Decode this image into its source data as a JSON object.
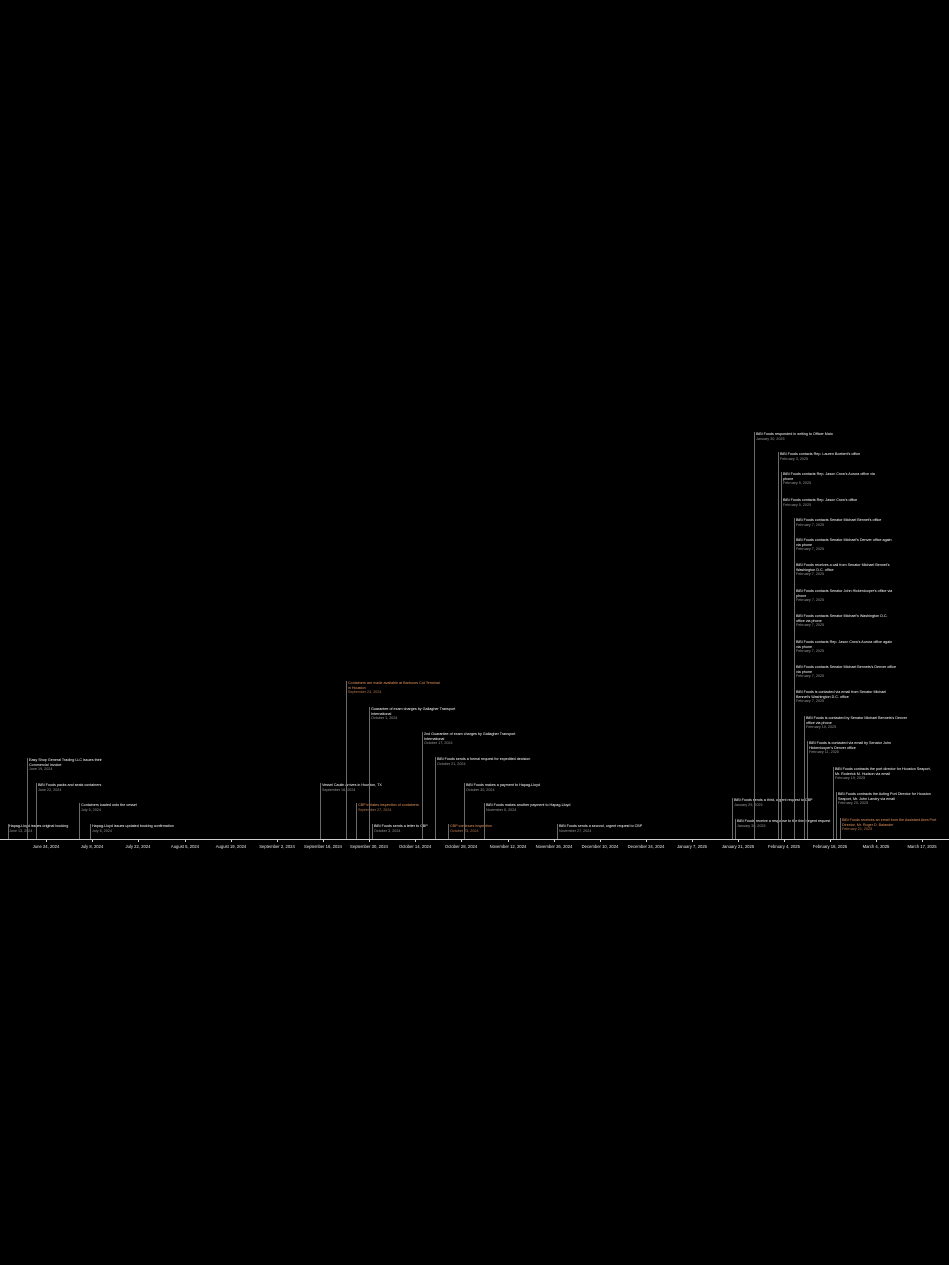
{
  "axis": {
    "ticks": [
      "June 24, 2024",
      "July 8, 2024",
      "July 22, 2024",
      "August 5, 2024",
      "August 19, 2024",
      "September 2, 2024",
      "September 16, 2024",
      "September 30, 2024",
      "October 14, 2024",
      "October 28, 2024",
      "November 12, 2024",
      "November 26, 2024",
      "December 10, 2024",
      "December 24, 2024",
      "January 7, 2025",
      "January 21, 2025",
      "February 4, 2025",
      "February 18, 2025",
      "March 4, 2025",
      "March 17, 2025"
    ]
  },
  "colors": {
    "background": "#000000",
    "text": "#ffffff",
    "date": "#9a9a9a",
    "highlight": "#e8935c",
    "axis": "#d0d0d0"
  },
  "events": [
    {
      "title": "Hapag-Lloyd issues original booking",
      "date": "June 13, 2024",
      "highlight": false
    },
    {
      "title": "Easy Shop General Trading LLC issues their Commercial Invoice",
      "date": "June 19, 2024",
      "highlight": false
    },
    {
      "title": "BiBi Foods packs and seals containers",
      "date": "June 22, 2024",
      "highlight": false
    },
    {
      "title": "Containers loaded onto the vessel",
      "date": "July 5, 2024",
      "highlight": false
    },
    {
      "title": "Hapag-Lloyd issues updated booking confirmation",
      "date": "July 8, 2024",
      "highlight": false
    },
    {
      "title": "Vessel Caulin arrives in Houston, TX",
      "date": "September 16, 2024",
      "highlight": false
    },
    {
      "title": "Containers are made available at Barbours Cut Terminal in Houston",
      "date": "September 24, 2024",
      "highlight": true
    },
    {
      "title": "CBP initiates inspection of containers",
      "date": "September 27, 2024",
      "highlight": true
    },
    {
      "title": "Guarantee of exam charges by Gallagher Transport International",
      "date": "October 1, 2024",
      "highlight": false
    },
    {
      "title": "BiBi Foods sends a letter to CBP",
      "date": "October 3, 2024",
      "highlight": false
    },
    {
      "title": "2nd Guarantee of exam charges by Gallagher Transport International",
      "date": "October 17, 2024",
      "highlight": false
    },
    {
      "title": "BiBi Foods sends a formal request for expedited decision",
      "date": "October 21, 2024",
      "highlight": false
    },
    {
      "title": "CBP continues inspection",
      "date": "October 25, 2024",
      "highlight": true
    },
    {
      "title": "BiBi Foods makes a payment to Hapag-Lloyd",
      "date": "October 30, 2024",
      "highlight": false
    },
    {
      "title": "BiBi Foods makes another payment to Hapag-Lloyd",
      "date": "November 5, 2024",
      "highlight": false
    },
    {
      "title": "BiBi Foods sends a second, urgent request to CBP",
      "date": "November 27, 2024",
      "highlight": false
    },
    {
      "title": "BiBi Foods sends a third, urgent request to CBP",
      "date": "January 29, 2025",
      "highlight": false
    },
    {
      "title": "BiBi Foods receive a response to the third urgent request",
      "date": "January 30, 2025",
      "highlight": false
    },
    {
      "title": "BiBi Foods responded in writing to Officer Malo",
      "date": "January 30, 2025",
      "highlight": false
    },
    {
      "title": "BiBi Foods contacts Rep. Lauren Boebert's office",
      "date": "February 3, 2025",
      "highlight": false
    },
    {
      "title": "BiBi Foods contacts Rep. Jason Crow's Aurora office via phone",
      "date": "February 5, 2025",
      "highlight": false
    },
    {
      "title": "BiBi Foods contacts Rep. Jason Crow's office",
      "date": "February 5, 2025",
      "highlight": false
    },
    {
      "title": "BiBi Foods contacts Senator Michael Bennet's office",
      "date": "February 7, 2025",
      "highlight": false
    },
    {
      "title": "BiBi Foods contacts Senator Michael's Denver office again via phone",
      "date": "February 7, 2025",
      "highlight": false
    },
    {
      "title": "BiBi Foods receives a call from Senator Michael Bennet's Washington D.C. office",
      "date": "February 7, 2025",
      "highlight": false
    },
    {
      "title": "BiBi Foods contacts Senator John Hickenlooper's office via phone",
      "date": "February 7, 2025",
      "highlight": false
    },
    {
      "title": "BiBi Foods contacts Senator Michael's Washington D.C. office via phone",
      "date": "February 7, 2025",
      "highlight": false
    },
    {
      "title": "BiBi Foods contacts Rep. Jason Crow's Aurora office again via phone",
      "date": "February 7, 2025",
      "highlight": false
    },
    {
      "title": "BiBi Foods contacts Senator Michael Bennets's Denver office via phone",
      "date": "February 7, 2025",
      "highlight": false
    },
    {
      "title": "BiBi Foods is contacted via email from Senator Michael Bennet's Washington D.C. office",
      "date": "February 7, 2025",
      "highlight": false
    },
    {
      "title": "BiBi Foods is contacted by Senator Michael Bennets's Denver office via phone",
      "date": "February 10, 2025",
      "highlight": false
    },
    {
      "title": "BiBi Foods is contacted via email by Senator John Hickenlooper's Denver office",
      "date": "February 11, 2025",
      "highlight": false
    },
    {
      "title": "BiBi Foods contracts the port director for Houston Seaport, Mr. Roderick M. Hudson via email",
      "date": "February 19, 2025",
      "highlight": false
    },
    {
      "title": "BiBi Foods contracts the Acting Port Director for Houston Seaport, Mr. John Landry via email",
      "date": "February 20, 2025",
      "highlight": false
    },
    {
      "title": "BiBi Foods receives an email from the Assistant Area Port Director, Mr. Roger D. Balander",
      "date": "February 21, 2025",
      "highlight": true
    }
  ]
}
